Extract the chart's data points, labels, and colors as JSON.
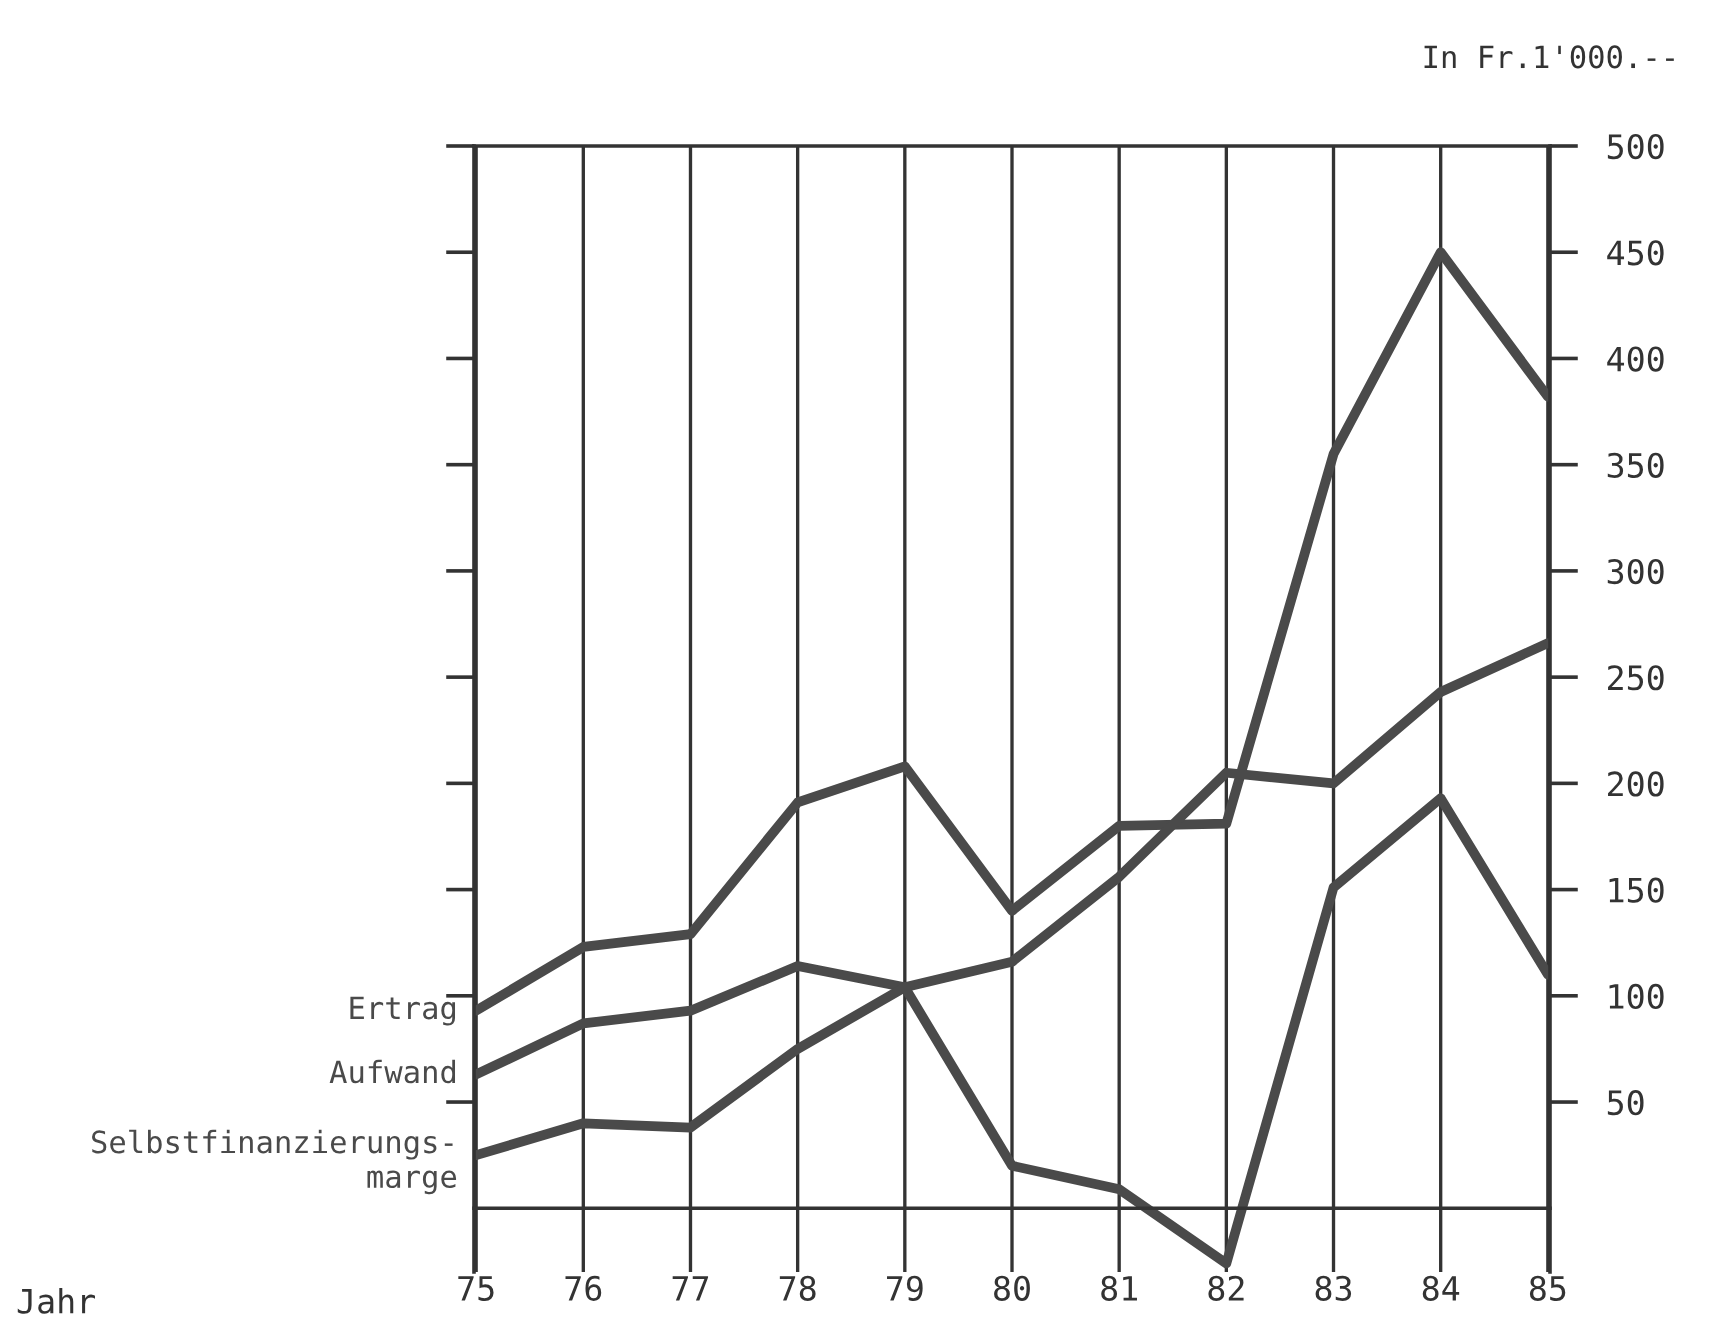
{
  "chart_data": {
    "type": "line",
    "ylabel": "In Fr.1'000.--",
    "annotations": [
      "Jahr"
    ],
    "categories": [
      "75",
      "76",
      "77",
      "78",
      "79",
      "80",
      "81",
      "82",
      "83",
      "84",
      "85"
    ],
    "series": [
      {
        "name": "Ertrag",
        "color": "#4a4a4a",
        "values": [
          93,
          123,
          129,
          191,
          208,
          140,
          180,
          181,
          355,
          450,
          382
        ]
      },
      {
        "name": "Aufwand",
        "color": "#4a4a4a",
        "values": [
          63,
          87,
          93,
          114,
          104,
          116,
          156,
          205,
          200,
          243,
          266
        ]
      },
      {
        "name": "Selbstfinanzierungs-\nmarge",
        "color": "#4a4a4a",
        "values": [
          25,
          40,
          38,
          75,
          104,
          20,
          9,
          -26,
          151,
          193,
          110
        ]
      }
    ],
    "ylim": [
      -30,
      500
    ],
    "yticks": [
      50,
      100,
      150,
      200,
      250,
      300,
      350,
      400,
      450,
      500
    ],
    "grid": "x",
    "legend": false,
    "marker": "none",
    "line_style": "solid"
  }
}
